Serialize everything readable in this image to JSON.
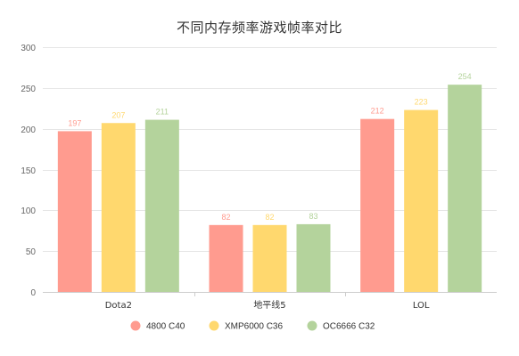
{
  "chart_data": {
    "type": "bar",
    "title": "不同内存频率游戏帧率对比",
    "xlabel": "",
    "ylabel": "",
    "categories": [
      "Dota2",
      "地平线5",
      "LOL"
    ],
    "series": [
      {
        "name": "4800 C40",
        "values": [
          197,
          82,
          212
        ],
        "color": "#ff9b8f"
      },
      {
        "name": "XMP6000 C36",
        "values": [
          207,
          82,
          223
        ],
        "color": "#ffd86e"
      },
      {
        "name": "OC6666 C32",
        "values": [
          211,
          83,
          254
        ],
        "color": "#b4d39c"
      }
    ],
    "ylim": [
      0,
      300
    ],
    "yticks": [
      0,
      50,
      100,
      150,
      200,
      250,
      300
    ],
    "grid": true,
    "legend": "bottom"
  }
}
